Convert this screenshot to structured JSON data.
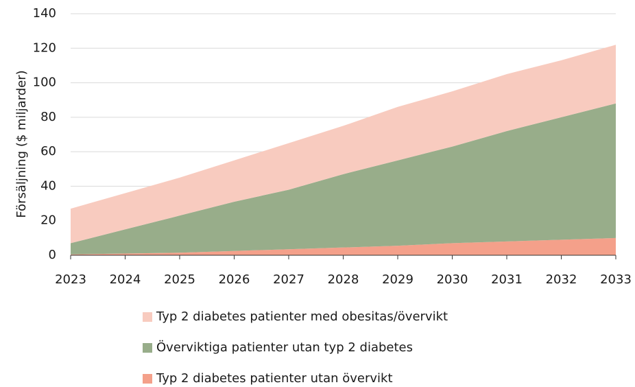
{
  "chart_data": {
    "type": "stacked-area",
    "y_label": "Försäljning ($ miljarder)",
    "x": [
      2023,
      2024,
      2025,
      2026,
      2027,
      2028,
      2029,
      2030,
      2031,
      2032,
      2033
    ],
    "xlim": [
      2023,
      2033
    ],
    "xticks": [
      2023,
      2024,
      2025,
      2026,
      2027,
      2028,
      2029,
      2030,
      2031,
      2032,
      2033
    ],
    "ylim": [
      0,
      140
    ],
    "yticks": [
      0,
      20,
      40,
      60,
      80,
      100,
      120,
      140
    ],
    "grid": true,
    "series": [
      {
        "name": "Typ 2 diabetes patienter utan övervikt",
        "color": "#f4a08a",
        "values": [
          0.5,
          1,
          1.5,
          2.5,
          3.5,
          4.5,
          5.5,
          7,
          8,
          9,
          10
        ]
      },
      {
        "name": "Överviktiga patienter utan typ 2 diabetes",
        "color": "#98ad8a",
        "values": [
          6.5,
          14,
          21.5,
          28.5,
          34.5,
          42.5,
          49.5,
          56,
          64,
          71,
          78
        ]
      },
      {
        "name": "Typ 2 diabetes patienter med obesitas/övervikt",
        "color": "#f8cbbf",
        "values": [
          20,
          21,
          22,
          24,
          27,
          28,
          31,
          32,
          33,
          33,
          34
        ]
      }
    ]
  }
}
